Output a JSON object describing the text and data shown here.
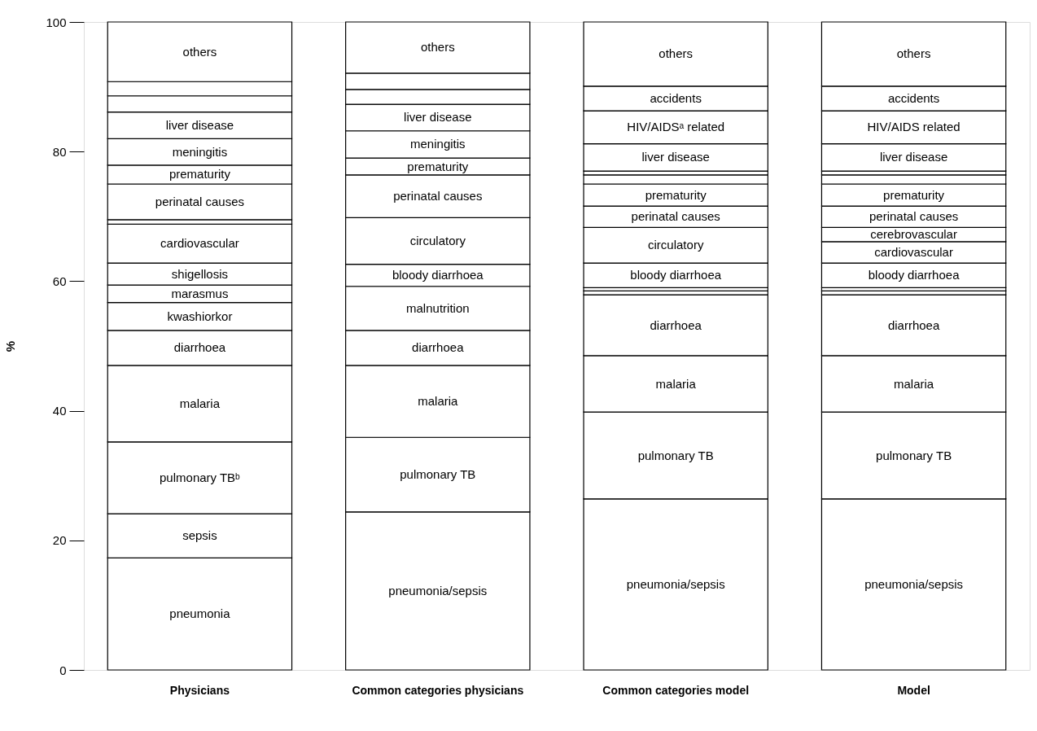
{
  "chart_data": {
    "type": "bar",
    "stacked": true,
    "ylabel": "%",
    "ylim": [
      0,
      100
    ],
    "yticks": [
      0,
      20,
      40,
      60,
      80,
      100
    ],
    "categories": [
      "Physicians",
      "Common categories physicians",
      "Common categories model",
      "Model"
    ],
    "series": [
      {
        "color": "#ffffff",
        "values": [
          17.3,
          null,
          null,
          null
        ],
        "value_labels": [
          "pneumonia",
          null,
          null,
          null
        ]
      },
      {
        "color": "#ffffff",
        "values": [
          6.8,
          null,
          null,
          null
        ],
        "value_labels": [
          "sepsis",
          null,
          null,
          null
        ]
      },
      {
        "color": "#ffffff",
        "values": [
          null,
          24.4,
          26.4,
          26.4
        ],
        "value_labels": [
          null,
          "pneumonia/sepsis",
          "pneumonia/sepsis",
          "pneumonia/sepsis"
        ]
      },
      {
        "color": "#ffffff",
        "values": [
          11.1,
          11.5,
          13.4,
          13.4
        ],
        "value_labels": [
          "pulmonary TBᵇ",
          "pulmonary TB",
          "pulmonary TB",
          "pulmonary TB"
        ]
      },
      {
        "color": "#ffffff",
        "values": [
          11.8,
          11.1,
          8.7,
          8.7
        ],
        "value_labels": [
          "malaria",
          "malaria",
          "malaria",
          "malaria"
        ]
      },
      {
        "color": "#ffffff",
        "values": [
          5.4,
          5.4,
          9.4,
          9.4
        ],
        "value_labels": [
          "diarrhoea",
          "diarrhoea",
          "diarrhoea",
          "diarrhoea"
        ]
      },
      {
        "color": "#ffffff",
        "values": [
          4.3,
          null,
          null,
          null
        ],
        "value_labels": [
          "kwashiorkor",
          null,
          null,
          null
        ]
      },
      {
        "color": "#ffffff",
        "values": [
          2.7,
          null,
          null,
          null
        ],
        "value_labels": [
          "marasmus",
          null,
          null,
          null
        ]
      },
      {
        "color": "#ffffff",
        "values": [
          null,
          6.8,
          null,
          null
        ],
        "value_labels": [
          null,
          "malnutrition",
          null,
          null
        ]
      },
      {
        "color": "#ffffff",
        "values": [
          null,
          null,
          0.6,
          0.6
        ],
        "value_labels": [
          null,
          null,
          null,
          null
        ]
      },
      {
        "color": "#ffffff",
        "values": [
          null,
          null,
          0.5,
          0.5
        ],
        "value_labels": [
          null,
          null,
          null,
          null
        ]
      },
      {
        "color": "#ffffff",
        "values": [
          3.4,
          null,
          null,
          null
        ],
        "value_labels": [
          "shigellosis",
          null,
          null,
          null
        ]
      },
      {
        "color": "#ffffff",
        "values": [
          null,
          3.4,
          3.8,
          3.8
        ],
        "value_labels": [
          null,
          "bloody diarrhoea",
          "bloody diarrhoea",
          "bloody diarrhoea"
        ]
      },
      {
        "color": "#ffffff",
        "values": [
          6.0,
          null,
          null,
          3.3
        ],
        "value_labels": [
          "cardiovascular",
          null,
          null,
          "cardiovascular"
        ]
      },
      {
        "color": "#ffffff",
        "values": [
          null,
          null,
          null,
          2.2
        ],
        "value_labels": [
          null,
          null,
          null,
          "cerebrovascular"
        ]
      },
      {
        "color": "#ffffff",
        "values": [
          null,
          7.2,
          5.5,
          null
        ],
        "value_labels": [
          null,
          "circulatory",
          "circulatory",
          null
        ]
      },
      {
        "color": "#ffffff",
        "values": [
          0.7,
          null,
          null,
          null
        ],
        "value_labels": [
          null,
          null,
          null,
          null
        ]
      },
      {
        "color": "#ffffff",
        "values": [
          5.5,
          6.6,
          3.3,
          3.3
        ],
        "value_labels": [
          "perinatal causes",
          "perinatal causes",
          "perinatal causes",
          "perinatal causes"
        ]
      },
      {
        "color": "#ffffff",
        "values": [
          2.9,
          2.6,
          3.4,
          3.4
        ],
        "value_labels": [
          "prematurity",
          "prematurity",
          "prematurity",
          "prematurity"
        ]
      },
      {
        "color": "#ffffff",
        "values": [
          null,
          null,
          1.4,
          1.4
        ],
        "value_labels": [
          null,
          null,
          null,
          null
        ]
      },
      {
        "color": "#ffffff",
        "values": [
          null,
          null,
          0.6,
          0.6
        ],
        "value_labels": [
          null,
          null,
          null,
          null
        ]
      },
      {
        "color": "#ffffff",
        "values": [
          4.1,
          4.2,
          null,
          null
        ],
        "value_labels": [
          "meningitis",
          "meningitis",
          null,
          null
        ]
      },
      {
        "color": "#ffffff",
        "values": [
          4.1,
          4.1,
          4.2,
          4.2
        ],
        "value_labels": [
          "liver disease",
          "liver disease",
          "liver disease",
          "liver disease"
        ]
      },
      {
        "color": "#ffffff",
        "values": [
          null,
          null,
          5.1,
          5.1
        ],
        "value_labels": [
          null,
          null,
          "HIV/AIDSᵃ related",
          "HIV/AIDS related"
        ]
      },
      {
        "color": "#ffffff",
        "values": [
          2.5,
          2.3,
          null,
          null
        ],
        "value_labels": [
          null,
          null,
          null,
          null
        ]
      },
      {
        "color": "#ffffff",
        "values": [
          2.2,
          2.5,
          null,
          null
        ],
        "value_labels": [
          null,
          null,
          null,
          null
        ]
      },
      {
        "color": "#ffffff",
        "values": [
          null,
          null,
          3.8,
          3.8
        ],
        "value_labels": [
          null,
          null,
          "accidents",
          "accidents"
        ]
      },
      {
        "color": "#ffffff",
        "values": [
          9.2,
          7.9,
          9.9,
          9.9
        ],
        "value_labels": [
          "others",
          "others",
          "others",
          "others"
        ]
      }
    ]
  }
}
